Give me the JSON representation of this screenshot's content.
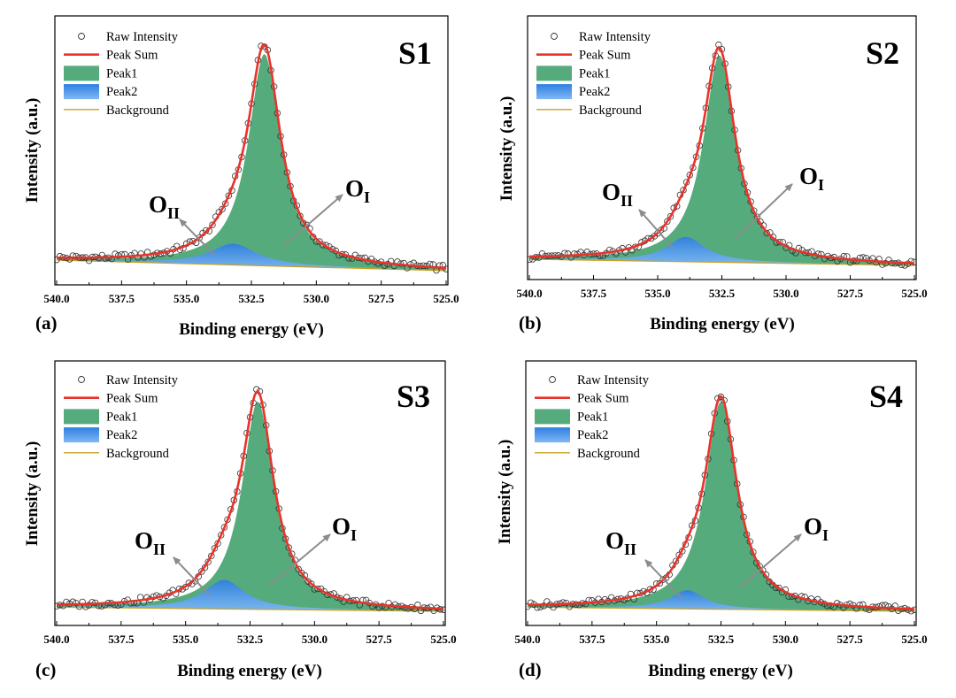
{
  "colors": {
    "raw": "#333333",
    "peak_sum": "#e8332b",
    "peak1_fill": "#55ab7c",
    "peak2_fill": "#3f8fe8",
    "background": "#c9a227",
    "arrow": "#8c8c8c"
  },
  "chart_data": [
    {
      "type": "area",
      "panel": "(a)",
      "sample": "S1",
      "xlabel": "Binding energy (eV)",
      "ylabel": "Intensity (a.u.)",
      "xlim": [
        540.0,
        525.0
      ],
      "xticks": [
        "540.0",
        "537.5",
        "535.0",
        "532.5",
        "530.0",
        "527.5",
        "525.0"
      ],
      "legend": [
        "Raw Intensity",
        "Peak Sum",
        "Peak1",
        "Peak2",
        "Background"
      ],
      "legend_position": "top-left",
      "annotations": [
        {
          "main": "O",
          "sub": "II",
          "target": "Peak2"
        },
        {
          "main": "O",
          "sub": "I",
          "target": "Peak1"
        }
      ],
      "background": {
        "y_at_540": 0.05,
        "y_at_525": 0.0
      },
      "peak1": {
        "center": 532.0,
        "height": 1.0,
        "fwhm": 1.5
      },
      "peak2": {
        "center": 533.2,
        "height": 0.1,
        "fwhm": 2.2
      }
    },
    {
      "type": "area",
      "panel": "(b)",
      "sample": "S2",
      "xlabel": "Binding energy (eV)",
      "ylabel": "Intensity (a.u.)",
      "xlim": [
        540.0,
        525.0
      ],
      "xticks": [
        "540.0",
        "537.5",
        "535.0",
        "532.5",
        "530.0",
        "527.5",
        "525.0"
      ],
      "legend": [
        "Raw Intensity",
        "Peak Sum",
        "Peak1",
        "Peak2",
        "Background"
      ],
      "legend_position": "top-left",
      "annotations": [
        {
          "main": "O",
          "sub": "II",
          "target": "Peak2"
        },
        {
          "main": "O",
          "sub": "I",
          "target": "Peak1"
        }
      ],
      "background": {
        "y_at_540": 0.03,
        "y_at_525": 0.0
      },
      "peak1": {
        "center": 532.6,
        "height": 1.0,
        "fwhm": 1.5
      },
      "peak2": {
        "center": 533.9,
        "height": 0.12,
        "fwhm": 1.8
      }
    },
    {
      "type": "area",
      "panel": "(c)",
      "sample": "S3",
      "xlabel": "Binding energy (eV)",
      "ylabel": "Intensity (a.u.)",
      "xlim": [
        540.0,
        525.0
      ],
      "xticks": [
        "540.0",
        "537.5",
        "535.0",
        "532.5",
        "530.0",
        "527.5",
        "525.0"
      ],
      "legend": [
        "Raw Intensity",
        "Peak Sum",
        "Peak1",
        "Peak2",
        "Background"
      ],
      "legend_position": "top-left",
      "annotations": [
        {
          "main": "O",
          "sub": "II",
          "target": "Peak2"
        },
        {
          "main": "O",
          "sub": "I",
          "target": "Peak1"
        }
      ],
      "background": {
        "y_at_540": 0.02,
        "y_at_525": 0.0
      },
      "peak1": {
        "center": 532.2,
        "height": 1.0,
        "fwhm": 1.5
      },
      "peak2": {
        "center": 533.5,
        "height": 0.14,
        "fwhm": 1.9
      }
    },
    {
      "type": "area",
      "panel": "(d)",
      "sample": "S4",
      "xlabel": "Binding energy (eV)",
      "ylabel": "Intensity (a.u.)",
      "xlim": [
        540.0,
        525.0
      ],
      "xticks": [
        "540.0",
        "537.5",
        "535.0",
        "532.5",
        "530.0",
        "527.5",
        "525.0"
      ],
      "legend": [
        "Raw Intensity",
        "Peak Sum",
        "Peak1",
        "Peak2",
        "Background"
      ],
      "legend_position": "top-left",
      "annotations": [
        {
          "main": "O",
          "sub": "II",
          "target": "Peak2"
        },
        {
          "main": "O",
          "sub": "I",
          "target": "Peak1"
        }
      ],
      "background": {
        "y_at_540": 0.02,
        "y_at_525": 0.0
      },
      "peak1": {
        "center": 532.5,
        "height": 1.0,
        "fwhm": 1.5
      },
      "peak2": {
        "center": 533.8,
        "height": 0.09,
        "fwhm": 1.6
      }
    }
  ]
}
